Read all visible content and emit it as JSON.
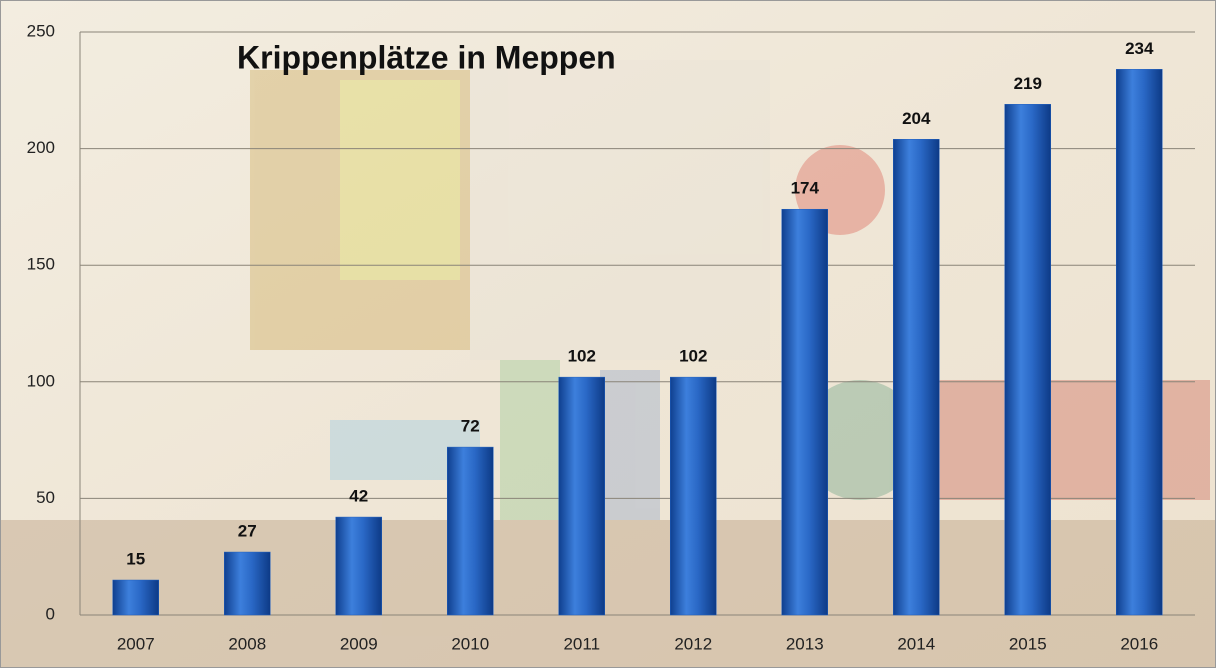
{
  "chart_data": {
    "type": "bar",
    "title": "Krippenplätze in Meppen",
    "categories": [
      "2007",
      "2008",
      "2009",
      "2010",
      "2011",
      "2012",
      "2013",
      "2014",
      "2015",
      "2016"
    ],
    "values": [
      15,
      27,
      42,
      72,
      102,
      102,
      174,
      204,
      219,
      234
    ],
    "color": "#1f5fbf",
    "ylim": [
      0,
      250
    ],
    "yticks": [
      0,
      50,
      100,
      150,
      200,
      250
    ],
    "grid": true
  }
}
